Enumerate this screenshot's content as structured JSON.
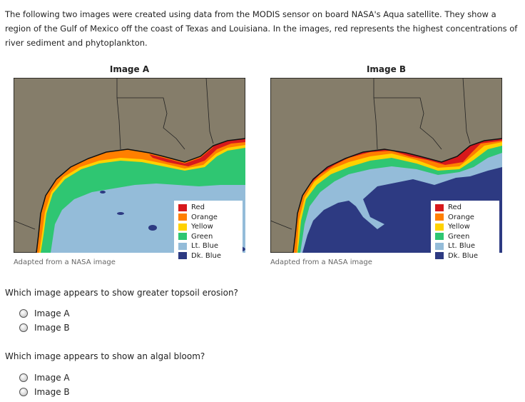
{
  "intro": "The following two images were created using data from the MODIS sensor on board NASA's Aqua satellite. They show a region of the Gulf of Mexico off the coast of Texas and Louisiana. In the images, red represents the highest concentrations of river sediment and phytoplankton.",
  "figures": [
    {
      "title": "Image A",
      "caption": "Adapted from a NASA image"
    },
    {
      "title": "Image B",
      "caption": "Adapted from a NASA image"
    }
  ],
  "legend": [
    {
      "label": "Red",
      "color": "#d7191c"
    },
    {
      "label": "Orange",
      "color": "#ff7f00"
    },
    {
      "label": "Yellow",
      "color": "#ffd200"
    },
    {
      "label": "Green",
      "color": "#2fc672"
    },
    {
      "label": "Lt. Blue",
      "color": "#94bcd9"
    },
    {
      "label": "Dk. Blue",
      "color": "#2d3a82"
    }
  ],
  "land_color": "#857d6a",
  "questions": [
    {
      "text": "Which image appears to show greater topsoil erosion?",
      "options": [
        "Image A",
        "Image B"
      ]
    },
    {
      "text": "Which image appears to show an algal bloom?",
      "options": [
        "Image A",
        "Image B"
      ]
    }
  ]
}
